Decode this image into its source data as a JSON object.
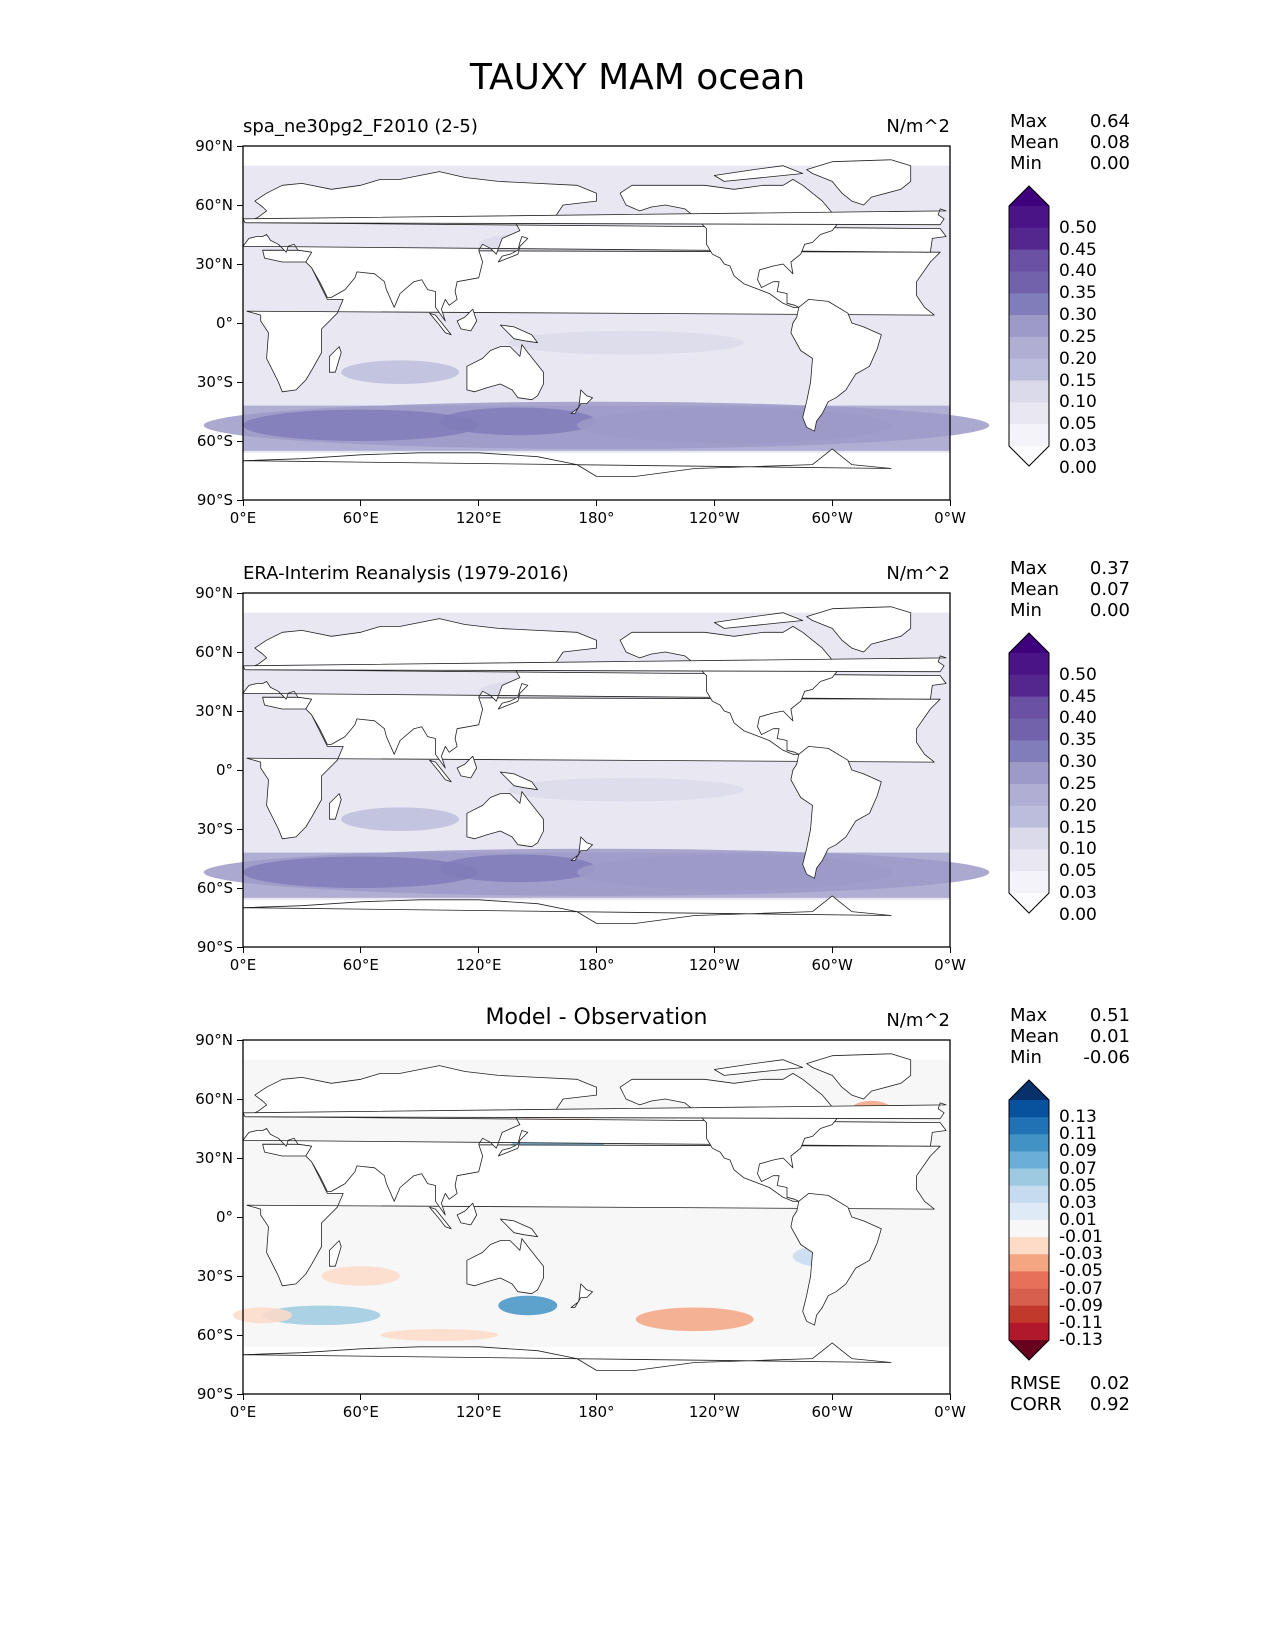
{
  "figure_title": "TAUXY MAM ocean",
  "map_axes": {
    "lat_ticks": [
      "90°N",
      "60°N",
      "30°N",
      "0°",
      "30°S",
      "60°S",
      "90°S"
    ],
    "lon_ticks": [
      "0°E",
      "60°E",
      "120°E",
      "180°",
      "120°W",
      "60°W",
      "0°W"
    ]
  },
  "panels": [
    {
      "id": "model",
      "title": "spa_ne30pg2_F2010 (2-5)",
      "units": "N/m^2",
      "stats": [
        {
          "label": "Max",
          "value": "0.64"
        },
        {
          "label": "Mean",
          "value": "0.08"
        },
        {
          "label": "Min",
          "value": "0.00"
        }
      ],
      "colorbar": {
        "labels": [
          "0.50",
          "0.45",
          "0.40",
          "0.35",
          "0.30",
          "0.25",
          "0.20",
          "0.15",
          "0.10",
          "0.05",
          "0.03",
          "0.00"
        ],
        "colors": [
          "#3f007d",
          "#4a1486",
          "#54278f",
          "#6a51a3",
          "#7262ab",
          "#807dba",
          "#9e9ac8",
          "#b0aed3",
          "#bcbddc",
          "#dadaeb",
          "#e8e7f2",
          "#f4f3f9",
          "#fcfbfd"
        ]
      }
    },
    {
      "id": "obs",
      "title": "ERA-Interim Reanalysis (1979-2016)",
      "units": "N/m^2",
      "stats": [
        {
          "label": "Max",
          "value": "0.37"
        },
        {
          "label": "Mean",
          "value": "0.07"
        },
        {
          "label": "Min",
          "value": "0.00"
        }
      ],
      "colorbar": {
        "labels": [
          "0.50",
          "0.45",
          "0.40",
          "0.35",
          "0.30",
          "0.25",
          "0.20",
          "0.15",
          "0.10",
          "0.05",
          "0.03",
          "0.00"
        ],
        "colors": [
          "#3f007d",
          "#4a1486",
          "#54278f",
          "#6a51a3",
          "#7262ab",
          "#807dba",
          "#9e9ac8",
          "#b0aed3",
          "#bcbddc",
          "#dadaeb",
          "#e8e7f2",
          "#f4f3f9",
          "#fcfbfd"
        ]
      }
    },
    {
      "id": "diff",
      "title": "Model - Observation",
      "units": "N/m^2",
      "stats": [
        {
          "label": "Max",
          "value": "0.51"
        },
        {
          "label": "Mean",
          "value": "0.01"
        },
        {
          "label": "Min",
          "value": "-0.06"
        }
      ],
      "extra_stats": [
        {
          "label": "RMSE",
          "value": "0.02"
        },
        {
          "label": "CORR",
          "value": "0.92"
        }
      ],
      "colorbar": {
        "labels": [
          "0.13",
          "0.11",
          "0.09",
          "0.07",
          "0.05",
          "0.03",
          "0.01",
          "-0.01",
          "-0.03",
          "-0.05",
          "-0.07",
          "-0.09",
          "-0.11",
          "-0.13"
        ],
        "colors": [
          "#08306b",
          "#08519c",
          "#2171b5",
          "#4292c6",
          "#6baed6",
          "#9ecae1",
          "#c6dbef",
          "#deebf7",
          "#f7f7f7",
          "#fddbc7",
          "#f4a582",
          "#e6705a",
          "#d6604d",
          "#c0392b",
          "#b2182b",
          "#67001f"
        ]
      }
    }
  ]
}
